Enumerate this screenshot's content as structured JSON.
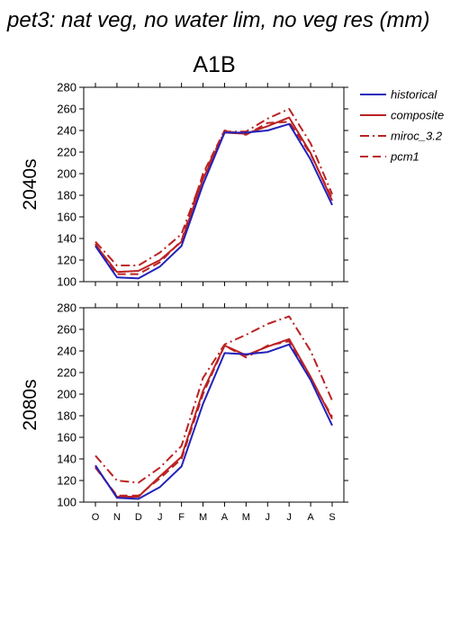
{
  "page_title": "pet3: nat veg, no water lim, no veg res (mm)",
  "chart_data": {
    "type": "line",
    "scenario_title": "A1B",
    "categories": [
      "O",
      "N",
      "D",
      "J",
      "F",
      "M",
      "A",
      "M",
      "J",
      "J",
      "A",
      "S"
    ],
    "ylim": [
      100,
      280
    ],
    "y_ticks": [
      "100",
      "120",
      "140",
      "160",
      "180",
      "200",
      "220",
      "240",
      "260",
      "280"
    ],
    "legend_placement": "right",
    "colors": {
      "historical": "#2222bb",
      "scenario": "#bb2222"
    },
    "legend": [
      {
        "name": "historical",
        "color": "#2222bb",
        "dash": ""
      },
      {
        "name": "composite",
        "color": "#bb2222",
        "dash": ""
      },
      {
        "name": "miroc_3.2",
        "color": "#bb2222",
        "dash": "10,4,2,4"
      },
      {
        "name": "pcm1",
        "color": "#bb2222",
        "dash": "9,5"
      }
    ],
    "panels": [
      {
        "row_label": "2040s",
        "series": [
          {
            "name": "historical",
            "values": [
              133,
              104,
              103,
              114,
              133,
              190,
              238,
              238,
              240,
              246,
              213,
              171
            ]
          },
          {
            "name": "composite",
            "values": [
              134,
              109,
              110,
              120,
              137,
              195,
              238,
              237,
              244,
              252,
              219,
              175
            ]
          },
          {
            "name": "miroc_3.2",
            "values": [
              137,
              115,
              115,
              127,
              144,
              198,
              239,
              239,
              251,
              260,
              228,
              181
            ]
          },
          {
            "name": "pcm1",
            "values": [
              135,
              107,
              107,
              118,
              138,
              200,
              240,
              236,
              247,
              248,
              218,
              177
            ]
          }
        ]
      },
      {
        "row_label": "2080s",
        "series": [
          {
            "name": "historical",
            "values": [
              134,
              104,
              103,
              114,
              133,
              191,
              238,
              237,
              239,
              246,
              213,
              171
            ]
          },
          {
            "name": "composite",
            "values": [
              133,
              105,
              105,
              124,
              142,
              203,
              245,
              236,
              244,
              251,
              216,
              177
            ]
          },
          {
            "name": "miroc_3.2",
            "values": [
              143,
              120,
              118,
              132,
              152,
              215,
              246,
              255,
              265,
              272,
              240,
              194
            ]
          },
          {
            "name": "pcm1",
            "values": [
              132,
              106,
              106,
              122,
              140,
              200,
              245,
              234,
              245,
              249,
              214,
              179
            ]
          }
        ]
      }
    ]
  }
}
